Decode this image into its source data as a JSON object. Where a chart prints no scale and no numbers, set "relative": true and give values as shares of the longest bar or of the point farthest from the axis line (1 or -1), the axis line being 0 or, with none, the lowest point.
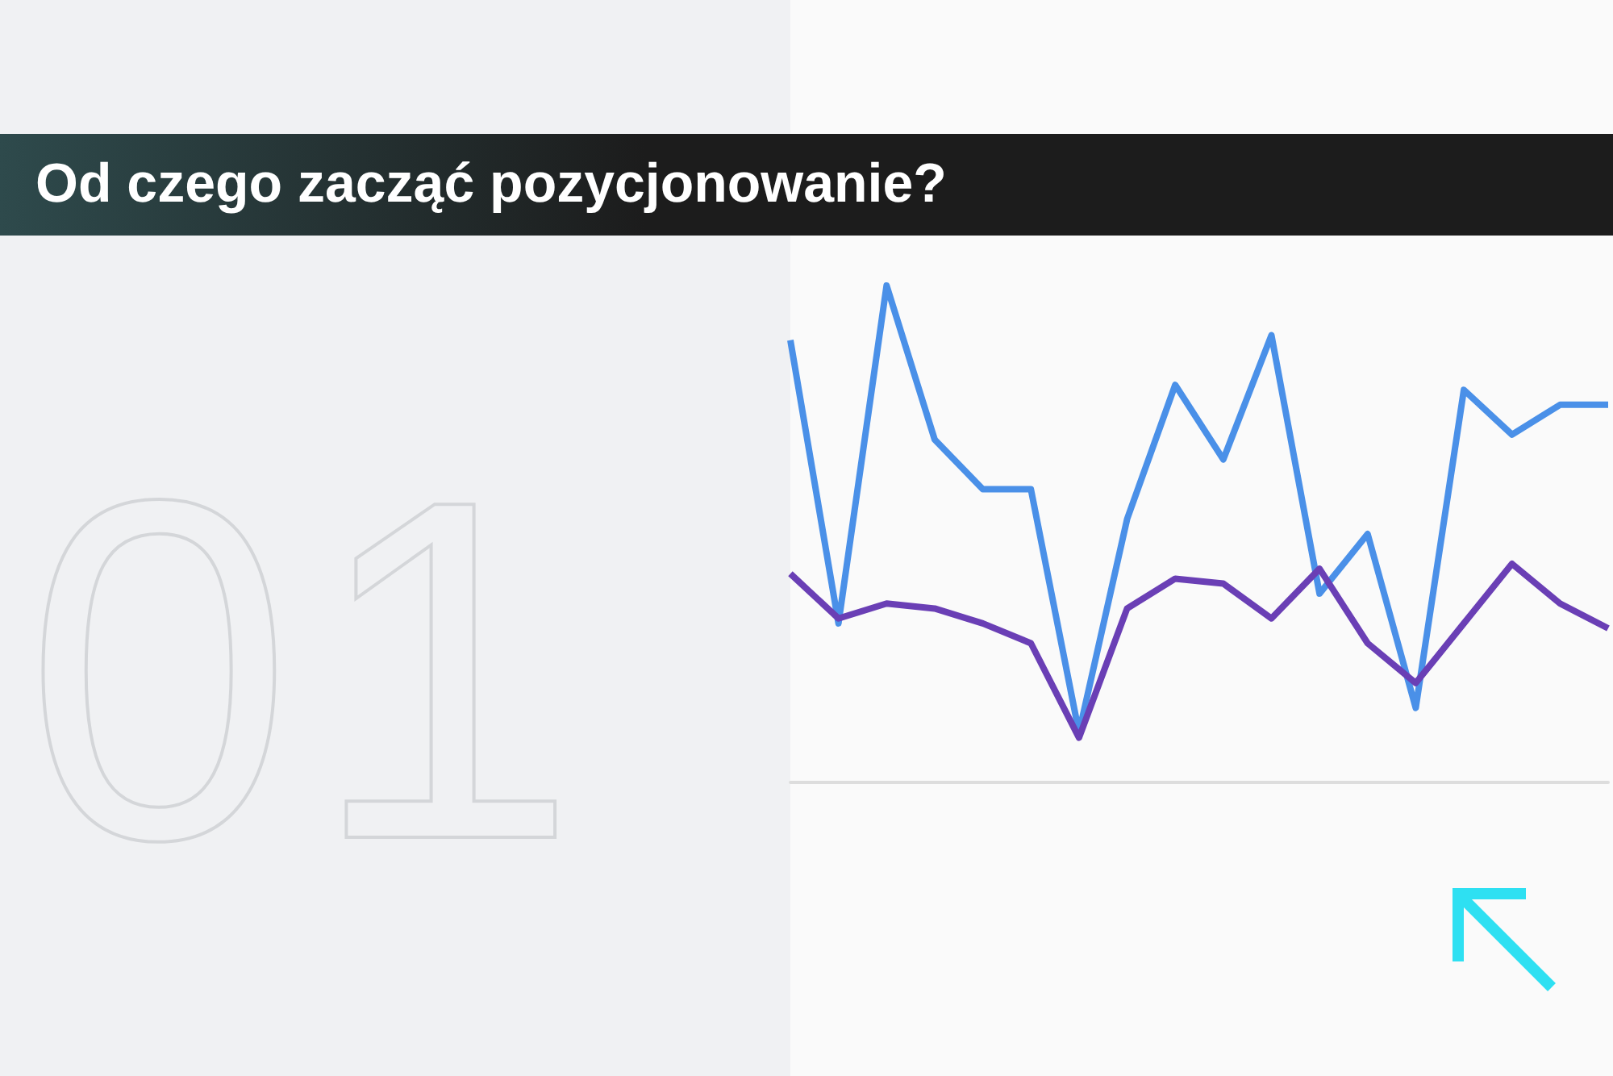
{
  "chart_data": {
    "type": "line",
    "relative": true,
    "title": "Od czego zacząć pozycjonowanie?",
    "annotations": [
      "01"
    ],
    "categories": [
      null,
      null,
      null,
      null,
      null,
      null,
      null,
      null,
      null,
      null,
      null,
      null,
      null,
      null,
      null,
      null,
      null,
      null
    ],
    "series": [
      {
        "color": "#4a90e8",
        "values": [
          0.89,
          0.32,
          1,
          0.69,
          0.59,
          0.59,
          0.1,
          0.53,
          0.8,
          0.65,
          0.9,
          0.38,
          0.5,
          0.15,
          0.79,
          0.7,
          0.76,
          0.76
        ]
      },
      {
        "color": "#6a3fb5",
        "values": [
          0.42,
          0.33,
          0.36,
          0.35,
          0.32,
          0.28,
          0.09,
          0.35,
          0.41,
          0.4,
          0.33,
          0.43,
          0.28,
          0.2,
          0.32,
          0.44,
          0.36,
          0.31
        ]
      }
    ],
    "marker": "none"
  }
}
